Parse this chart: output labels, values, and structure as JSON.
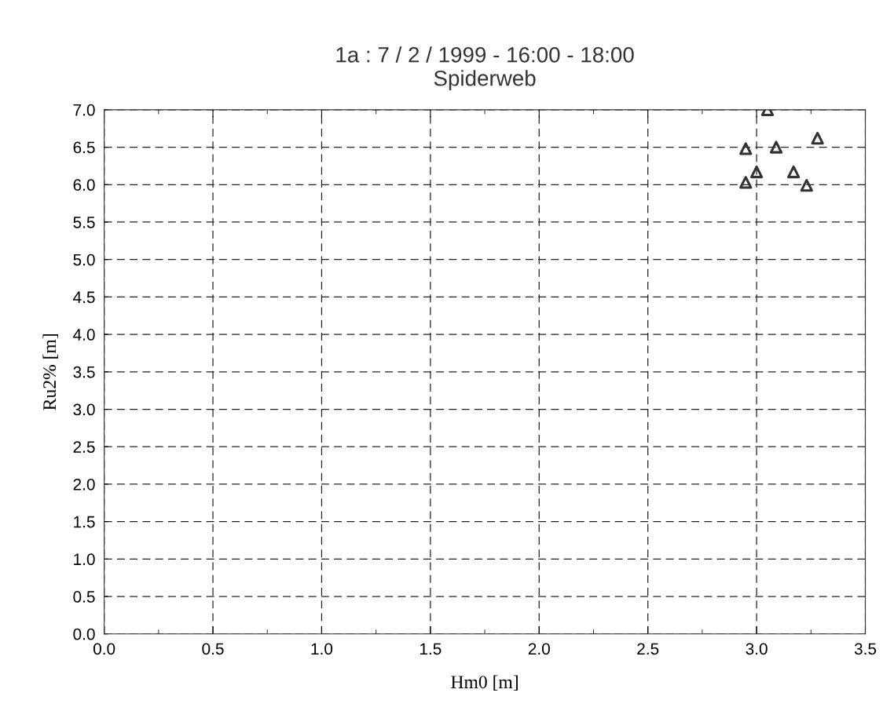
{
  "chart_data": {
    "type": "scatter",
    "title": "1a : 7 / 2 / 1999 - 16:00 - 18:00\nSpiderweb",
    "xlabel": "Hm0 [m]",
    "ylabel": "Ru2% [m]",
    "x": [
      3.05,
      2.95,
      3.09,
      3.28,
      3.0,
      3.17,
      2.95,
      3.23
    ],
    "values": [
      7.0,
      6.48,
      6.5,
      6.62,
      6.17,
      6.17,
      6.03,
      5.99
    ],
    "color": "#333333",
    "marker": "triangle",
    "grid": true,
    "xlim": [
      0.0,
      3.5
    ],
    "xticks": [
      {
        "value": 0,
        "label": "0.0"
      },
      0.5,
      {
        "value": 1,
        "label": "1.0"
      },
      1.5,
      {
        "value": 2,
        "label": "2.0"
      },
      2.5,
      {
        "value": 3,
        "label": "3.0"
      },
      3.5
    ],
    "ylim": [
      0.0,
      7.0
    ],
    "yticks": [
      {
        "value": 0,
        "label": "0.0"
      },
      0.5,
      {
        "value": 1,
        "label": "1.0"
      },
      1.5,
      {
        "value": 2,
        "label": "2.0"
      },
      2.5,
      {
        "value": 3,
        "label": "3.0"
      },
      3.5,
      {
        "value": 4,
        "label": "4.0"
      },
      4.5,
      {
        "value": 5,
        "label": "5.0"
      },
      5.5,
      {
        "value": 6,
        "label": "6.0"
      },
      6.5,
      {
        "value": 7,
        "label": "7.0"
      }
    ]
  }
}
